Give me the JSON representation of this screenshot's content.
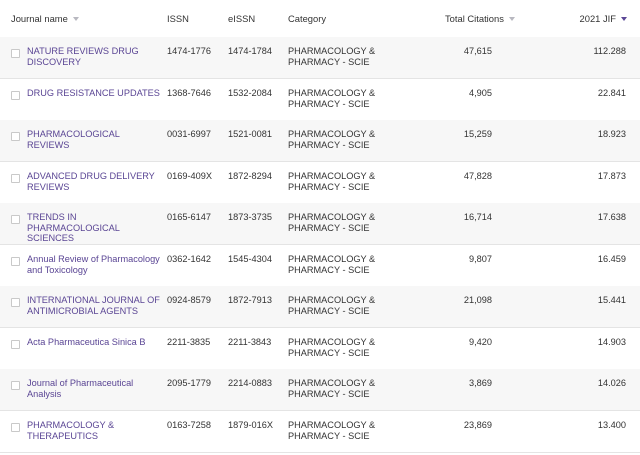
{
  "table": {
    "headers": {
      "journal_name": "Journal name",
      "issn": "ISSN",
      "eissn": "eISSN",
      "category": "Category",
      "total_citations": "Total Citations",
      "jif": "2021 JIF"
    },
    "rows": [
      {
        "name": "NATURE REVIEWS DRUG DISCOVERY",
        "issn": "1474-1776",
        "eissn": "1474-1784",
        "category": "PHARMACOLOGY & PHARMACY - SCIE",
        "citations": "47,615",
        "jif": "112.288"
      },
      {
        "name": "DRUG RESISTANCE UPDATES",
        "issn": "1368-7646",
        "eissn": "1532-2084",
        "category": "PHARMACOLOGY & PHARMACY - SCIE",
        "citations": "4,905",
        "jif": "22.841"
      },
      {
        "name": "PHARMACOLOGICAL REVIEWS",
        "issn": "0031-6997",
        "eissn": "1521-0081",
        "category": "PHARMACOLOGY & PHARMACY - SCIE",
        "citations": "15,259",
        "jif": "18.923"
      },
      {
        "name": "ADVANCED DRUG DELIVERY REVIEWS",
        "issn": "0169-409X",
        "eissn": "1872-8294",
        "category": "PHARMACOLOGY & PHARMACY - SCIE",
        "citations": "47,828",
        "jif": "17.873"
      },
      {
        "name": "TRENDS IN PHARMACOLOGICAL SCIENCES",
        "issn": "0165-6147",
        "eissn": "1873-3735",
        "category": "PHARMACOLOGY & PHARMACY - SCIE",
        "citations": "16,714",
        "jif": "17.638"
      },
      {
        "name": "Annual Review of Pharmacology and Toxicology",
        "issn": "0362-1642",
        "eissn": "1545-4304",
        "category": "PHARMACOLOGY & PHARMACY - SCIE",
        "citations": "9,807",
        "jif": "16.459"
      },
      {
        "name": "INTERNATIONAL JOURNAL OF ANTIMICROBIAL AGENTS",
        "issn": "0924-8579",
        "eissn": "1872-7913",
        "category": "PHARMACOLOGY & PHARMACY - SCIE",
        "citations": "21,098",
        "jif": "15.441"
      },
      {
        "name": "Acta Pharmaceutica Sinica B",
        "issn": "2211-3835",
        "eissn": "2211-3843",
        "category": "PHARMACOLOGY & PHARMACY - SCIE",
        "citations": "9,420",
        "jif": "14.903"
      },
      {
        "name": "Journal of Pharmaceutical Analysis",
        "issn": "2095-1779",
        "eissn": "2214-0883",
        "category": "PHARMACOLOGY & PHARMACY - SCIE",
        "citations": "3,869",
        "jif": "14.026"
      },
      {
        "name": "PHARMACOLOGY & THERAPEUTICS",
        "issn": "0163-7258",
        "eissn": "1879-016X",
        "category": "PHARMACOLOGY & PHARMACY - SCIE",
        "citations": "23,869",
        "jif": "13.400"
      }
    ]
  },
  "colors": {
    "link": "#5a4594",
    "sort_active": "#5b4796",
    "sort_idle": "#b8b8c0",
    "row_alt": "#f7f7f7",
    "divider": "#e4e4e4"
  },
  "icons": {
    "journal_name_sort": "sort-down-icon",
    "citations_sort": "sort-down-icon",
    "jif_sort": "sort-down-icon-active"
  }
}
